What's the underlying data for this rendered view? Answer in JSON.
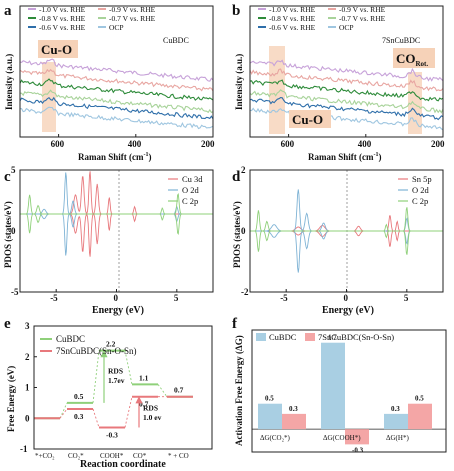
{
  "chart_data": [
    {
      "panel": "a",
      "type": "line",
      "title": "CuBDC",
      "xlabel": "Raman Shift (cm",
      "xlabel_sup": "-1",
      "xlabel_close": ")",
      "ylabel": "Intensity (a.u.)",
      "xlim": [
        700,
        200
      ],
      "xticks": [
        600,
        400,
        200
      ],
      "series": [
        {
          "name": "-1.0 V vs. RHE",
          "color": "#c7a2d9"
        },
        {
          "name": "-0.9 V vs. RHE",
          "color": "#e8a6a2"
        },
        {
          "name": "-0.8 V vs. RHE",
          "color": "#2e8b3a"
        },
        {
          "name": "-0.7 V vs. RHE",
          "color": "#a8d39a"
        },
        {
          "name": "-0.6 V vs. RHE",
          "color": "#2f6faa"
        },
        {
          "name": "OCP",
          "color": "#9fc6e0"
        }
      ],
      "annotations": [
        "Cu-O"
      ],
      "highlight_band_cm": [
        650,
        590
      ]
    },
    {
      "panel": "b",
      "type": "line",
      "title": "7SnCuBDC",
      "xlabel": "Raman Shift (cm",
      "xlabel_sup": "-1",
      "xlabel_close": ")",
      "ylabel": "Intensity (a.u.)",
      "xlim": [
        700,
        200
      ],
      "xticks": [
        600,
        400,
        200
      ],
      "series": [
        {
          "name": "-1.0 V vs. RHE",
          "color": "#c7a2d9"
        },
        {
          "name": "-0.9 V vs. RHE",
          "color": "#e8a6a2"
        },
        {
          "name": "-0.8 V vs. RHE",
          "color": "#2e8b3a"
        },
        {
          "name": "-0.7 V vs. RHE",
          "color": "#a8d39a"
        },
        {
          "name": "-0.6 V vs. RHE",
          "color": "#2f6faa"
        },
        {
          "name": "OCP",
          "color": "#9fc6e0"
        }
      ],
      "annotations": [
        "Cu-O",
        "CO",
        "Rot."
      ],
      "highlight_bands_cm": [
        [
          650,
          600
        ],
        [
          300,
          265
        ]
      ]
    },
    {
      "panel": "c",
      "type": "line",
      "xlabel": "Energy (eV)",
      "ylabel": "PDOS (states/eV)",
      "xlim": [
        -8,
        8
      ],
      "ylim": [
        -5,
        5
      ],
      "xticks": [
        -5,
        0,
        5
      ],
      "yticks": [
        -5,
        0,
        5
      ],
      "series": [
        {
          "name": "Cu 3d",
          "color": "#e8787c"
        },
        {
          "name": "O 2d",
          "color": "#7fb3d5"
        },
        {
          "name": "C 2p",
          "color": "#8fd07a"
        }
      ]
    },
    {
      "panel": "d",
      "type": "line",
      "xlabel": "Energy (eV)",
      "ylabel": "PDOS (states/eV)",
      "xlim": [
        -8,
        8
      ],
      "ylim": [
        -2,
        2
      ],
      "xticks": [
        -5,
        0,
        5
      ],
      "yticks": [
        -2,
        0,
        2
      ],
      "series": [
        {
          "name": "Sn 5p",
          "color": "#e8787c"
        },
        {
          "name": "O 2d",
          "color": "#7fb3d5"
        },
        {
          "name": "C 2p",
          "color": "#8fd07a"
        }
      ]
    },
    {
      "panel": "e",
      "type": "line",
      "xlabel": "Reaction coordinate",
      "ylabel": "Free Energy (eV)",
      "ylim": [
        -1,
        3
      ],
      "yticks": [
        -1,
        0,
        1,
        2,
        3
      ],
      "states": [
        "*+CO₂",
        "CO₂*",
        "COOH*",
        "CO*",
        "* + CO"
      ],
      "series": [
        {
          "name": "CuBDC",
          "color": "#8fd07a",
          "values": [
            0,
            0.5,
            2.2,
            1.1,
            0.7
          ]
        },
        {
          "name": "7SnCuBDC(Sn-O-Sn)",
          "color": "#e8787c",
          "values": [
            0,
            0.3,
            -0.3,
            0.7,
            0.7
          ]
        }
      ],
      "value_labels": {
        "CuBDC": [
          "0.5",
          "2.2",
          "1.1",
          "0.7"
        ],
        "7SnCuBDC(Sn-O-Sn)": [
          "0.3",
          "-0.3",
          "0.7"
        ]
      },
      "annotations": [
        {
          "text": "RDS",
          "sub": "1.7ev",
          "color": "#8fd07a"
        },
        {
          "text": "RDS",
          "sub": "1.0 ev",
          "color": "#e8787c"
        }
      ]
    },
    {
      "panel": "f",
      "type": "bar",
      "ylabel": "Activation Free Energy (ΔG)",
      "categories": [
        "ΔG(CO₂*)",
        "ΔG(COOH*)",
        "ΔG(H*)"
      ],
      "series": [
        {
          "name": "CuBDC",
          "color": "#a9cfe3",
          "values": [
            0.5,
            1.7,
            0.3
          ],
          "labels": [
            "0.5",
            "1.7",
            "0.3"
          ]
        },
        {
          "name": "7SnCuBDC(Sn-O-Sn)",
          "color": "#f4a6a6",
          "values": [
            0.3,
            -0.3,
            0.5
          ],
          "labels": [
            "0.3",
            "-0.3",
            "0.5"
          ]
        }
      ],
      "ylim": [
        -0.45,
        1.95
      ]
    }
  ]
}
